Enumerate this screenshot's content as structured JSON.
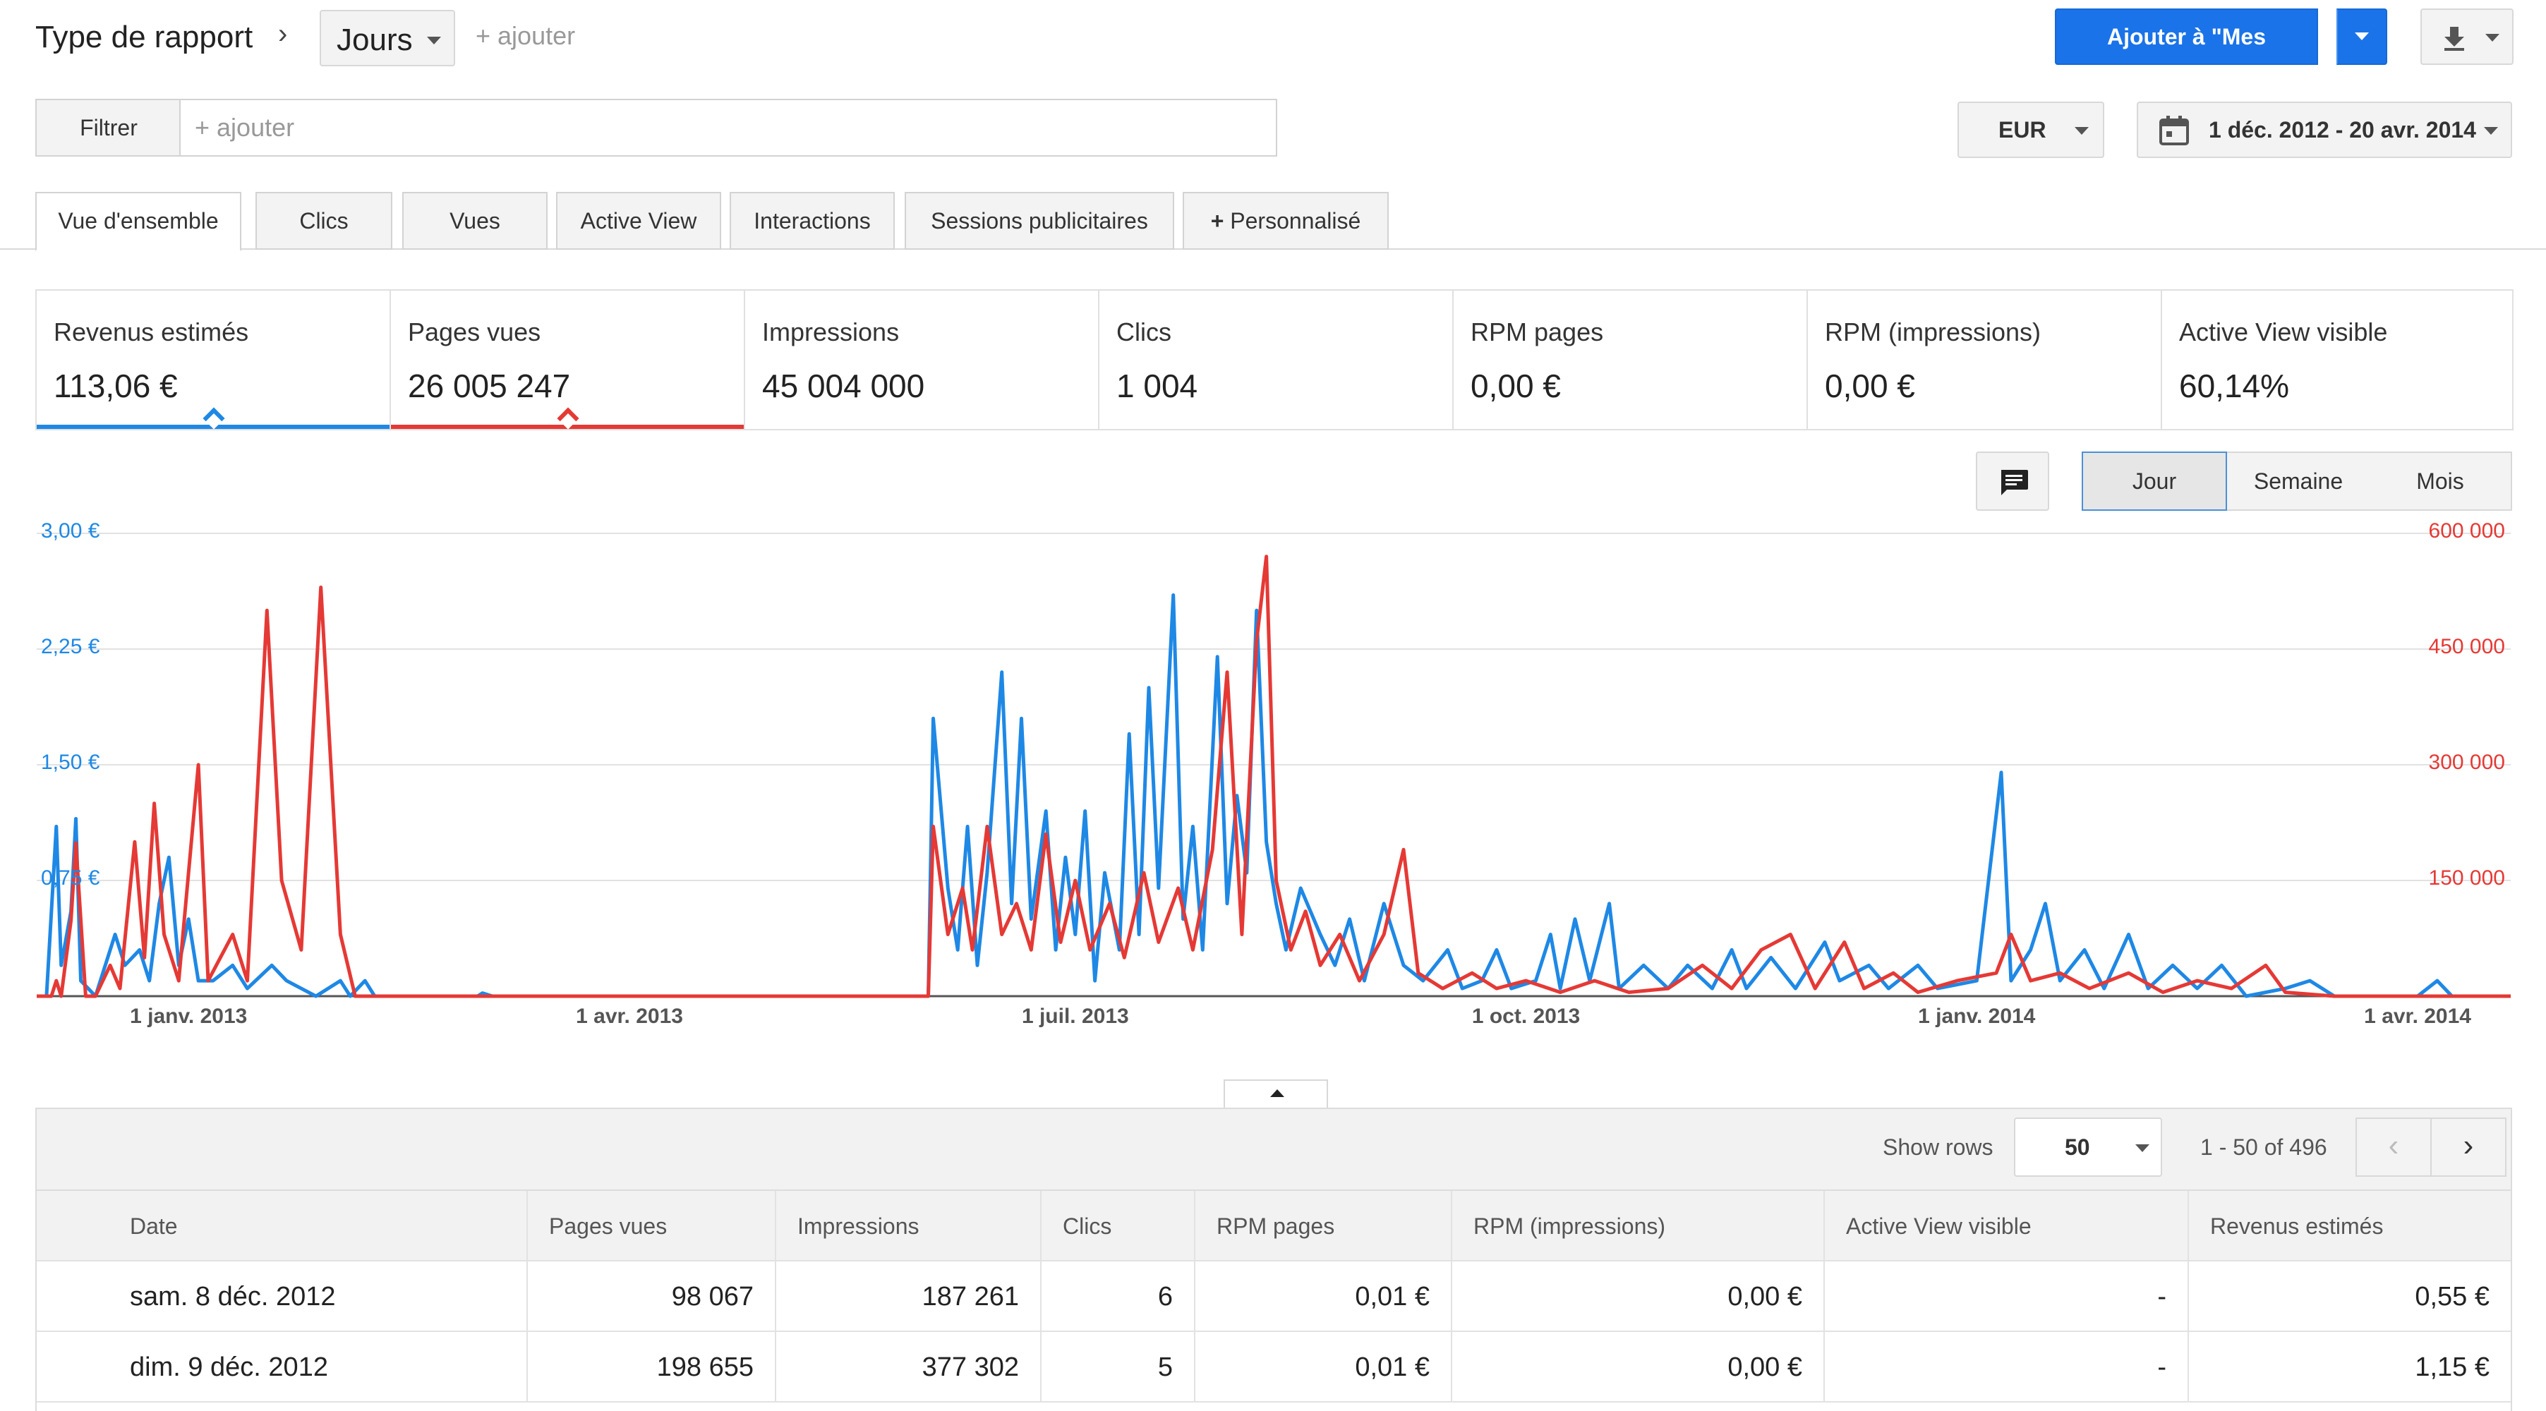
{
  "toolbar": {
    "report_type_label": "Type de rapport",
    "dimension_value": "Jours",
    "add_label": "+ ajouter",
    "add_to_reports_label": "Ajouter à \"Mes rapports\""
  },
  "filter": {
    "button_label": "Filtrer",
    "placeholder": "+ ajouter",
    "currency": "EUR",
    "date_range": "1 déc. 2012 - 20 avr. 2014"
  },
  "tabs": [
    {
      "label": "Vue d'ensemble",
      "active": true
    },
    {
      "label": "Clics"
    },
    {
      "label": "Vues"
    },
    {
      "label": "Active View"
    },
    {
      "label": "Interactions"
    },
    {
      "label": "Sessions publicitaires"
    },
    {
      "label": "Personnalisé"
    }
  ],
  "metrics": [
    {
      "title": "Revenus estimés",
      "value": "113,06 €",
      "color": "#1e88e5"
    },
    {
      "title": "Pages vues",
      "value": "26 005 247",
      "color": "#e53935"
    },
    {
      "title": "Impressions",
      "value": "45 004 000"
    },
    {
      "title": "Clics",
      "value": "1 004"
    },
    {
      "title": "RPM pages",
      "value": "0,00 €"
    },
    {
      "title": "RPM (impressions)",
      "value": "0,00 €"
    },
    {
      "title": "Active View visible",
      "value": "60,14%"
    }
  ],
  "granularity": {
    "day": "Jour",
    "week": "Semaine",
    "month": "Mois",
    "selected": "Jour"
  },
  "chart_data": {
    "type": "line",
    "x_axis_labels": [
      "1 janv. 2013",
      "1 avr. 2013",
      "1 juil. 2013",
      "1 oct. 2013",
      "1 janv. 2014",
      "1 avr. 2014"
    ],
    "y_left_ticks": [
      "0,75 €",
      "1,50 €",
      "2,25 €",
      "3,00 €"
    ],
    "y_left_range": [
      0,
      3
    ],
    "y_right_ticks": [
      "150 000",
      "300 000",
      "450 000",
      "600 000"
    ],
    "y_right_range": [
      0,
      600000
    ],
    "x_range": [
      "2012-12-01",
      "2014-04-20"
    ],
    "grid": true,
    "series": [
      {
        "name": "Revenus estimés",
        "color": "#1e88e5",
        "axis": "left",
        "points": [
          [
            "2012-12-01",
            0
          ],
          [
            "2012-12-03",
            0
          ],
          [
            "2012-12-05",
            1.1
          ],
          [
            "2012-12-06",
            0.2
          ],
          [
            "2012-12-08",
            0.55
          ],
          [
            "2012-12-09",
            1.15
          ],
          [
            "2012-12-10",
            0.1
          ],
          [
            "2012-12-13",
            0
          ],
          [
            "2012-12-17",
            0.4
          ],
          [
            "2012-12-19",
            0.2
          ],
          [
            "2012-12-22",
            0.3
          ],
          [
            "2012-12-24",
            0.1
          ],
          [
            "2012-12-26",
            0.6
          ],
          [
            "2012-12-28",
            0.9
          ],
          [
            "2012-12-30",
            0.2
          ],
          [
            "2013-01-01",
            0.5
          ],
          [
            "2013-01-03",
            0.1
          ],
          [
            "2013-01-06",
            0.1
          ],
          [
            "2013-01-10",
            0.2
          ],
          [
            "2013-01-13",
            0.05
          ],
          [
            "2013-01-18",
            0.2
          ],
          [
            "2013-01-21",
            0.1
          ],
          [
            "2013-01-24",
            0.05
          ],
          [
            "2013-01-27",
            0
          ],
          [
            "2013-02-01",
            0.1
          ],
          [
            "2013-02-03",
            0
          ],
          [
            "2013-02-06",
            0.1
          ],
          [
            "2013-02-08",
            0
          ],
          [
            "2013-03-01",
            0
          ],
          [
            "2013-03-02",
            0.02
          ],
          [
            "2013-03-04",
            0
          ],
          [
            "2013-06-01",
            0
          ],
          [
            "2013-06-02",
            1.8
          ],
          [
            "2013-06-05",
            0.7
          ],
          [
            "2013-06-07",
            0.3
          ],
          [
            "2013-06-09",
            1.1
          ],
          [
            "2013-06-11",
            0.2
          ],
          [
            "2013-06-13",
            0.8
          ],
          [
            "2013-06-16",
            2.1
          ],
          [
            "2013-06-18",
            0.6
          ],
          [
            "2013-06-20",
            1.8
          ],
          [
            "2013-06-22",
            0.5
          ],
          [
            "2013-06-25",
            1.2
          ],
          [
            "2013-06-27",
            0.3
          ],
          [
            "2013-06-29",
            0.9
          ],
          [
            "2013-07-01",
            0.4
          ],
          [
            "2013-07-03",
            1.2
          ],
          [
            "2013-07-05",
            0.1
          ],
          [
            "2013-07-07",
            0.8
          ],
          [
            "2013-07-10",
            0.3
          ],
          [
            "2013-07-12",
            1.7
          ],
          [
            "2013-07-14",
            0.4
          ],
          [
            "2013-07-16",
            2.0
          ],
          [
            "2013-07-18",
            0.7
          ],
          [
            "2013-07-21",
            2.6
          ],
          [
            "2013-07-23",
            0.5
          ],
          [
            "2013-07-25",
            1.1
          ],
          [
            "2013-07-27",
            0.3
          ],
          [
            "2013-07-30",
            2.2
          ],
          [
            "2013-08-01",
            0.6
          ],
          [
            "2013-08-03",
            1.3
          ],
          [
            "2013-08-05",
            0.8
          ],
          [
            "2013-08-07",
            2.5
          ],
          [
            "2013-08-09",
            1.0
          ],
          [
            "2013-08-11",
            0.6
          ],
          [
            "2013-08-13",
            0.3
          ],
          [
            "2013-08-16",
            0.7
          ],
          [
            "2013-08-20",
            0.4
          ],
          [
            "2013-08-23",
            0.2
          ],
          [
            "2013-08-26",
            0.5
          ],
          [
            "2013-08-29",
            0.1
          ],
          [
            "2013-09-02",
            0.6
          ],
          [
            "2013-09-06",
            0.2
          ],
          [
            "2013-09-10",
            0.1
          ],
          [
            "2013-09-15",
            0.3
          ],
          [
            "2013-09-18",
            0.05
          ],
          [
            "2013-09-22",
            0.1
          ],
          [
            "2013-09-25",
            0.3
          ],
          [
            "2013-09-28",
            0.05
          ],
          [
            "2013-10-03",
            0.1
          ],
          [
            "2013-10-06",
            0.4
          ],
          [
            "2013-10-08",
            0.05
          ],
          [
            "2013-10-11",
            0.5
          ],
          [
            "2013-10-14",
            0.1
          ],
          [
            "2013-10-18",
            0.6
          ],
          [
            "2013-10-20",
            0.05
          ],
          [
            "2013-10-25",
            0.2
          ],
          [
            "2013-10-30",
            0.05
          ],
          [
            "2013-11-03",
            0.2
          ],
          [
            "2013-11-08",
            0.05
          ],
          [
            "2013-11-12",
            0.3
          ],
          [
            "2013-11-15",
            0.05
          ],
          [
            "2013-11-20",
            0.25
          ],
          [
            "2013-11-25",
            0.05
          ],
          [
            "2013-12-01",
            0.35
          ],
          [
            "2013-12-04",
            0.1
          ],
          [
            "2013-12-10",
            0.2
          ],
          [
            "2013-12-14",
            0.05
          ],
          [
            "2013-12-20",
            0.2
          ],
          [
            "2013-12-24",
            0.05
          ],
          [
            "2014-01-01",
            0.1
          ],
          [
            "2014-01-06",
            1.45
          ],
          [
            "2014-01-08",
            0.1
          ],
          [
            "2014-01-12",
            0.3
          ],
          [
            "2014-01-15",
            0.6
          ],
          [
            "2014-01-18",
            0.1
          ],
          [
            "2014-01-23",
            0.3
          ],
          [
            "2014-01-27",
            0.05
          ],
          [
            "2014-02-01",
            0.4
          ],
          [
            "2014-02-05",
            0.05
          ],
          [
            "2014-02-10",
            0.2
          ],
          [
            "2014-02-15",
            0.05
          ],
          [
            "2014-02-20",
            0.2
          ],
          [
            "2014-02-25",
            0
          ],
          [
            "2014-03-05",
            0.05
          ],
          [
            "2014-03-10",
            0.1
          ],
          [
            "2014-03-15",
            0
          ],
          [
            "2014-04-01",
            0
          ],
          [
            "2014-04-05",
            0.1
          ],
          [
            "2014-04-08",
            0
          ],
          [
            "2014-04-20",
            0
          ]
        ]
      },
      {
        "name": "Pages vues",
        "color": "#e53935",
        "axis": "right",
        "points": [
          [
            "2012-12-01",
            0
          ],
          [
            "2012-12-04",
            0
          ],
          [
            "2012-12-05",
            20000
          ],
          [
            "2012-12-06",
            0
          ],
          [
            "2012-12-08",
            98067
          ],
          [
            "2012-12-09",
            198655
          ],
          [
            "2012-12-11",
            0
          ],
          [
            "2012-12-13",
            0
          ],
          [
            "2012-12-16",
            40000
          ],
          [
            "2012-12-18",
            10000
          ],
          [
            "2012-12-21",
            200000
          ],
          [
            "2012-12-23",
            50000
          ],
          [
            "2012-12-25",
            250000
          ],
          [
            "2012-12-27",
            80000
          ],
          [
            "2012-12-30",
            20000
          ],
          [
            "2013-01-03",
            300000
          ],
          [
            "2013-01-05",
            20000
          ],
          [
            "2013-01-10",
            80000
          ],
          [
            "2013-01-13",
            20000
          ],
          [
            "2013-01-17",
            500000
          ],
          [
            "2013-01-20",
            150000
          ],
          [
            "2013-01-24",
            60000
          ],
          [
            "2013-01-28",
            530000
          ],
          [
            "2013-02-01",
            80000
          ],
          [
            "2013-02-04",
            0
          ],
          [
            "2013-06-01",
            0
          ],
          [
            "2013-06-02",
            220000
          ],
          [
            "2013-06-05",
            80000
          ],
          [
            "2013-06-08",
            140000
          ],
          [
            "2013-06-10",
            60000
          ],
          [
            "2013-06-13",
            220000
          ],
          [
            "2013-06-16",
            80000
          ],
          [
            "2013-06-19",
            120000
          ],
          [
            "2013-06-22",
            60000
          ],
          [
            "2013-06-25",
            210000
          ],
          [
            "2013-06-28",
            70000
          ],
          [
            "2013-07-01",
            150000
          ],
          [
            "2013-07-04",
            60000
          ],
          [
            "2013-07-08",
            120000
          ],
          [
            "2013-07-11",
            50000
          ],
          [
            "2013-07-15",
            160000
          ],
          [
            "2013-07-18",
            70000
          ],
          [
            "2013-07-22",
            140000
          ],
          [
            "2013-07-25",
            60000
          ],
          [
            "2013-07-29",
            190000
          ],
          [
            "2013-08-01",
            420000
          ],
          [
            "2013-08-04",
            80000
          ],
          [
            "2013-08-07",
            460000
          ],
          [
            "2013-08-09",
            570000
          ],
          [
            "2013-08-11",
            150000
          ],
          [
            "2013-08-14",
            60000
          ],
          [
            "2013-08-17",
            110000
          ],
          [
            "2013-08-20",
            40000
          ],
          [
            "2013-08-24",
            80000
          ],
          [
            "2013-08-28",
            20000
          ],
          [
            "2013-09-02",
            80000
          ],
          [
            "2013-09-06",
            190000
          ],
          [
            "2013-09-09",
            30000
          ],
          [
            "2013-09-14",
            10000
          ],
          [
            "2013-09-20",
            30000
          ],
          [
            "2013-09-25",
            10000
          ],
          [
            "2013-10-01",
            20000
          ],
          [
            "2013-10-08",
            5000
          ],
          [
            "2013-10-15",
            20000
          ],
          [
            "2013-10-22",
            5000
          ],
          [
            "2013-10-30",
            10000
          ],
          [
            "2013-11-06",
            40000
          ],
          [
            "2013-11-12",
            10000
          ],
          [
            "2013-11-18",
            60000
          ],
          [
            "2013-11-24",
            80000
          ],
          [
            "2013-11-29",
            10000
          ],
          [
            "2013-12-05",
            70000
          ],
          [
            "2013-12-09",
            10000
          ],
          [
            "2013-12-15",
            30000
          ],
          [
            "2013-12-20",
            5000
          ],
          [
            "2013-12-28",
            20000
          ],
          [
            "2014-01-05",
            30000
          ],
          [
            "2014-01-08",
            80000
          ],
          [
            "2014-01-12",
            20000
          ],
          [
            "2014-01-18",
            30000
          ],
          [
            "2014-01-24",
            10000
          ],
          [
            "2014-02-01",
            30000
          ],
          [
            "2014-02-08",
            5000
          ],
          [
            "2014-02-15",
            20000
          ],
          [
            "2014-02-22",
            10000
          ],
          [
            "2014-03-01",
            40000
          ],
          [
            "2014-03-05",
            5000
          ],
          [
            "2014-03-15",
            0
          ],
          [
            "2014-04-20",
            0
          ]
        ]
      }
    ]
  },
  "table": {
    "show_rows_label": "Show rows",
    "rows_value": "50",
    "range_label": "1 - 50 of 496",
    "columns": [
      "Date",
      "Pages vues",
      "Impressions",
      "Clics",
      "RPM pages",
      "RPM (impressions)",
      "Active View visible",
      "Revenus estimés"
    ],
    "rows": [
      [
        "sam. 8 déc. 2012",
        "98 067",
        "187 261",
        "6",
        "0,01 €",
        "0,00 €",
        "-",
        "0,55 €"
      ],
      [
        "dim. 9 déc. 2012",
        "198 655",
        "377 302",
        "5",
        "0,01 €",
        "0,00 €",
        "-",
        "1,15 €"
      ]
    ]
  }
}
